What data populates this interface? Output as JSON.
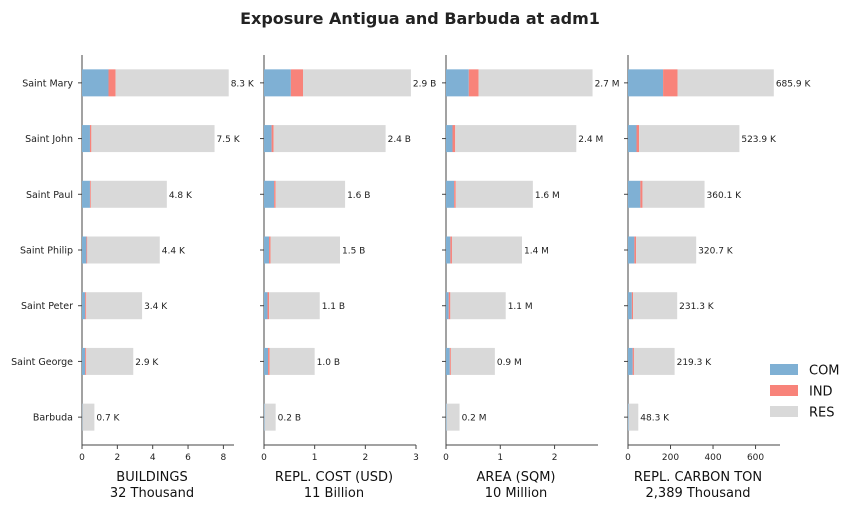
{
  "chart_data": {
    "type": "bar",
    "title": "Exposure Antigua and Barbuda at adm1",
    "categories": [
      "Saint Mary",
      "Saint John",
      "Saint Paul",
      "Saint Philip",
      "Saint Peter",
      "Saint George",
      "Barbuda"
    ],
    "legend": {
      "placement": "lower-right",
      "entries": [
        {
          "name": "COM",
          "color": "#7fb0d4"
        },
        {
          "name": "IND",
          "color": "#f8837a"
        },
        {
          "name": "RES",
          "color": "#d9d9d9"
        }
      ]
    },
    "panels": [
      {
        "xlabel": "BUILDINGS",
        "total_label": "32 Thousand",
        "xlim": [
          0,
          8.6
        ],
        "ticks": [
          0,
          2,
          4,
          6,
          8
        ],
        "series": [
          {
            "name": "COM",
            "values": [
              1.5,
              0.45,
              0.45,
              0.25,
              0.18,
              0.18,
              0.02
            ]
          },
          {
            "name": "IND",
            "values": [
              0.4,
              0.08,
              0.05,
              0.05,
              0.06,
              0.06,
              0.0
            ]
          },
          {
            "name": "RES",
            "values": [
              6.4,
              6.97,
              4.3,
              4.1,
              3.16,
              2.66,
              0.68
            ]
          }
        ],
        "totals": [
          "8.3 K",
          "7.5 K",
          "4.8 K",
          "4.4 K",
          "3.4 K",
          "2.9 K",
          "0.7 K"
        ]
      },
      {
        "xlabel": "REPL. COST (USD)",
        "total_label": "11 Billion",
        "xlim": [
          0,
          3
        ],
        "ticks": [
          0,
          1,
          2,
          3
        ],
        "series": [
          {
            "name": "COM",
            "values": [
              0.53,
              0.15,
              0.2,
              0.1,
              0.07,
              0.08,
              0.01
            ]
          },
          {
            "name": "IND",
            "values": [
              0.24,
              0.04,
              0.03,
              0.03,
              0.03,
              0.03,
              0.0
            ]
          },
          {
            "name": "RES",
            "values": [
              2.13,
              2.21,
              1.37,
              1.37,
              1.0,
              0.89,
              0.22
            ]
          }
        ],
        "totals": [
          "2.9 B",
          "2.4 B",
          "1.6 B",
          "1.5 B",
          "1.1 B",
          "1.0 B",
          "0.2 B"
        ]
      },
      {
        "xlabel": "AREA (SQM)",
        "total_label": "10 Million",
        "xlim": [
          0,
          2.8
        ],
        "ticks": [
          0,
          1,
          2
        ],
        "series": [
          {
            "name": "COM",
            "values": [
              0.42,
              0.12,
              0.15,
              0.08,
              0.05,
              0.07,
              0.01
            ]
          },
          {
            "name": "IND",
            "values": [
              0.18,
              0.05,
              0.03,
              0.03,
              0.03,
              0.02,
              0.0
            ]
          },
          {
            "name": "RES",
            "values": [
              2.1,
              2.23,
              1.42,
              1.29,
              1.02,
              0.81,
              0.24
            ]
          }
        ],
        "totals": [
          "2.7 M",
          "2.4 M",
          "1.6 M",
          "1.4 M",
          "1.1 M",
          "0.9 M",
          "0.2 M"
        ]
      },
      {
        "xlabel": "REPL. CARBON TON",
        "total_label": "2,389 Thousand",
        "xlim": [
          0,
          715
        ],
        "ticks": [
          0,
          200,
          400,
          600
        ],
        "series": [
          {
            "name": "COM",
            "values": [
              165,
              40,
              58,
              30,
              18,
              22,
              3
            ]
          },
          {
            "name": "IND",
            "values": [
              68,
              12,
              10,
              8,
              6,
              6,
              0
            ]
          },
          {
            "name": "RES",
            "values": [
              452.9,
              471.9,
              292.1,
              282.7,
              207.3,
              191.3,
              45.3
            ]
          }
        ],
        "totals": [
          "685.9 K",
          "523.9 K",
          "360.1 K",
          "320.7 K",
          "231.3 K",
          "219.3 K",
          "48.3 K"
        ]
      }
    ]
  }
}
